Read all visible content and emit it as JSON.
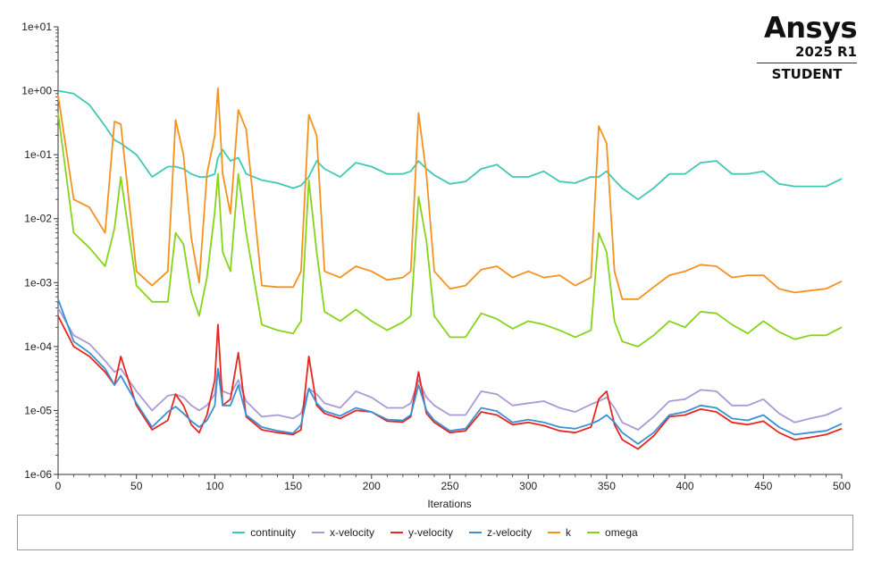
{
  "logo": {
    "name": "Ansys",
    "version": "2025 R1",
    "edition": "STUDENT"
  },
  "chart_data": {
    "type": "line",
    "xlabel": "Iterations",
    "ylabel": "",
    "title": "",
    "xlim": [
      0,
      500
    ],
    "ylim": [
      1e-06,
      10
    ],
    "yscale": "log",
    "x_ticks": [
      0,
      50,
      100,
      150,
      200,
      250,
      300,
      350,
      400,
      450,
      500
    ],
    "y_ticks": [
      {
        "value": 10,
        "label": "1e+01"
      },
      {
        "value": 1,
        "label": "1e+00"
      },
      {
        "value": 0.1,
        "label": "1e-01"
      },
      {
        "value": 0.01,
        "label": "1e-02"
      },
      {
        "value": 0.001,
        "label": "1e-03"
      },
      {
        "value": 0.0001,
        "label": "1e-04"
      },
      {
        "value": 1e-05,
        "label": "1e-05"
      },
      {
        "value": 1e-06,
        "label": "1e-06"
      }
    ],
    "grid": false,
    "legend_position": "bottom",
    "x": [
      0,
      10,
      20,
      30,
      36,
      40,
      50,
      60,
      70,
      75,
      80,
      85,
      90,
      95,
      100,
      102,
      105,
      110,
      115,
      120,
      130,
      140,
      150,
      155,
      160,
      165,
      170,
      180,
      190,
      200,
      210,
      220,
      225,
      230,
      235,
      240,
      250,
      260,
      270,
      280,
      290,
      300,
      310,
      320,
      330,
      340,
      345,
      350,
      355,
      360,
      370,
      380,
      390,
      400,
      410,
      420,
      430,
      440,
      450,
      460,
      470,
      480,
      490,
      500
    ],
    "series": [
      {
        "name": "continuity",
        "color": "#3fc9b4",
        "values": [
          1.0,
          0.9,
          0.6,
          0.28,
          0.17,
          0.15,
          0.1,
          0.045,
          0.065,
          0.065,
          0.06,
          0.05,
          0.045,
          0.045,
          0.05,
          0.09,
          0.12,
          0.08,
          0.09,
          0.05,
          0.04,
          0.036,
          0.03,
          0.033,
          0.045,
          0.08,
          0.06,
          0.045,
          0.075,
          0.065,
          0.05,
          0.05,
          0.055,
          0.08,
          0.06,
          0.048,
          0.035,
          0.038,
          0.06,
          0.07,
          0.045,
          0.045,
          0.055,
          0.038,
          0.036,
          0.045,
          0.045,
          0.055,
          0.04,
          0.03,
          0.02,
          0.03,
          0.05,
          0.05,
          0.075,
          0.08,
          0.05,
          0.05,
          0.055,
          0.035,
          0.032,
          0.032,
          0.032,
          0.042
        ]
      },
      {
        "name": "x-velocity",
        "color": "#a99ad6",
        "values": [
          0.0004,
          0.00015,
          0.00011,
          6e-05,
          4e-05,
          4.5e-05,
          2e-05,
          1e-05,
          1.7e-05,
          1.8e-05,
          1.6e-05,
          1.2e-05,
          1e-05,
          1.2e-05,
          1.8e-05,
          4.5e-05,
          2e-05,
          1.8e-05,
          3e-05,
          1.4e-05,
          8e-06,
          8.5e-06,
          7.5e-06,
          9e-06,
          2.2e-05,
          1.8e-05,
          1.3e-05,
          1.1e-05,
          2e-05,
          1.6e-05,
          1.1e-05,
          1.1e-05,
          1.3e-05,
          3e-05,
          1.6e-05,
          1.2e-05,
          8.5e-06,
          8.5e-06,
          2e-05,
          1.8e-05,
          1.2e-05,
          1.3e-05,
          1.4e-05,
          1.1e-05,
          9.5e-06,
          1.25e-05,
          1.4e-05,
          1.6e-05,
          1.1e-05,
          6.5e-06,
          5e-06,
          8e-06,
          1.4e-05,
          1.5e-05,
          2.1e-05,
          2e-05,
          1.2e-05,
          1.2e-05,
          1.5e-05,
          9e-06,
          6.5e-06,
          7.5e-06,
          8.5e-06,
          1.1e-05
        ]
      },
      {
        "name": "y-velocity",
        "color": "#e8261e",
        "values": [
          0.0003,
          0.0001,
          7e-05,
          4e-05,
          2.5e-05,
          7e-05,
          1.2e-05,
          5e-06,
          7e-06,
          1.8e-05,
          1.2e-05,
          6e-06,
          4.5e-06,
          8.5e-06,
          3e-05,
          0.00022,
          1.2e-05,
          1.5e-05,
          8e-05,
          8e-06,
          5e-06,
          4.5e-06,
          4.2e-06,
          5e-06,
          7e-05,
          1.2e-05,
          9e-06,
          7.5e-06,
          1e-05,
          9.5e-06,
          6.8e-06,
          6.6e-06,
          8e-06,
          4e-05,
          9e-06,
          6.5e-06,
          4.5e-06,
          4.8e-06,
          9.5e-06,
          8.5e-06,
          6e-06,
          6.5e-06,
          5.8e-06,
          4.8e-06,
          4.5e-06,
          5.5e-06,
          1.5e-05,
          2e-05,
          6e-06,
          3.5e-06,
          2.5e-06,
          4e-06,
          8e-06,
          8.5e-06,
          1.05e-05,
          9.5e-06,
          6.5e-06,
          6e-06,
          6.8e-06,
          4.5e-06,
          3.5e-06,
          3.8e-06,
          4.2e-06,
          5.2e-06
        ]
      },
      {
        "name": "z-velocity",
        "color": "#3a8fd6",
        "values": [
          0.00055,
          0.00012,
          8e-05,
          4.5e-05,
          2.5e-05,
          3.5e-05,
          1.3e-05,
          5.5e-06,
          9.5e-06,
          1.15e-05,
          9e-06,
          6.8e-06,
          5.5e-06,
          7e-06,
          1.2e-05,
          4.5e-05,
          1.2e-05,
          1.2e-05,
          2.5e-05,
          8.5e-06,
          5.5e-06,
          4.8e-06,
          4.4e-06,
          6e-06,
          2.2e-05,
          1.3e-05,
          9.8e-06,
          8.2e-06,
          1.1e-05,
          9.5e-06,
          7.2e-06,
          7e-06,
          8.5e-06,
          2.5e-05,
          1e-05,
          7e-06,
          4.8e-06,
          5.2e-06,
          1.1e-05,
          9.8e-06,
          6.5e-06,
          7.2e-06,
          6.5e-06,
          5.5e-06,
          5.2e-06,
          6.2e-06,
          7e-06,
          8.5e-06,
          6.5e-06,
          4.5e-06,
          3e-06,
          4.5e-06,
          8.5e-06,
          9.5e-06,
          1.2e-05,
          1.1e-05,
          7.5e-06,
          7e-06,
          8.5e-06,
          5.5e-06,
          4.2e-06,
          4.5e-06,
          4.8e-06,
          6.2e-06
        ]
      },
      {
        "name": "k",
        "color": "#f5921e",
        "values": [
          0.85,
          0.02,
          0.015,
          0.006,
          0.33,
          0.3,
          0.0015,
          0.0009,
          0.0015,
          0.35,
          0.1,
          0.005,
          0.001,
          0.05,
          0.2,
          1.1,
          0.05,
          0.012,
          0.5,
          0.25,
          0.0009,
          0.00085,
          0.00085,
          0.0015,
          0.42,
          0.2,
          0.0015,
          0.0012,
          0.0018,
          0.0015,
          0.0011,
          0.0012,
          0.0015,
          0.45,
          0.05,
          0.0015,
          0.0008,
          0.0009,
          0.0016,
          0.0018,
          0.0012,
          0.0015,
          0.0012,
          0.0013,
          0.0009,
          0.0012,
          0.28,
          0.15,
          0.0015,
          0.00055,
          0.00055,
          0.00085,
          0.0013,
          0.0015,
          0.0019,
          0.0018,
          0.0012,
          0.0013,
          0.0013,
          0.0008,
          0.0007,
          0.00075,
          0.0008,
          0.00105
        ]
      },
      {
        "name": "omega",
        "color": "#86d41a",
        "values": [
          0.45,
          0.006,
          0.0035,
          0.0018,
          0.007,
          0.045,
          0.0009,
          0.0005,
          0.0005,
          0.006,
          0.004,
          0.0007,
          0.0003,
          0.0012,
          0.013,
          0.05,
          0.003,
          0.0015,
          0.05,
          0.006,
          0.00022,
          0.00018,
          0.00016,
          0.00025,
          0.04,
          0.003,
          0.00035,
          0.00025,
          0.00038,
          0.00025,
          0.00018,
          0.00024,
          0.0003,
          0.022,
          0.0045,
          0.0003,
          0.00014,
          0.00014,
          0.00033,
          0.00027,
          0.00019,
          0.00025,
          0.00022,
          0.00018,
          0.00014,
          0.00018,
          0.006,
          0.003,
          0.00025,
          0.00012,
          0.0001,
          0.00015,
          0.00025,
          0.0002,
          0.00035,
          0.00033,
          0.00022,
          0.00016,
          0.00025,
          0.00017,
          0.00013,
          0.00015,
          0.00015,
          0.0002
        ]
      }
    ]
  }
}
